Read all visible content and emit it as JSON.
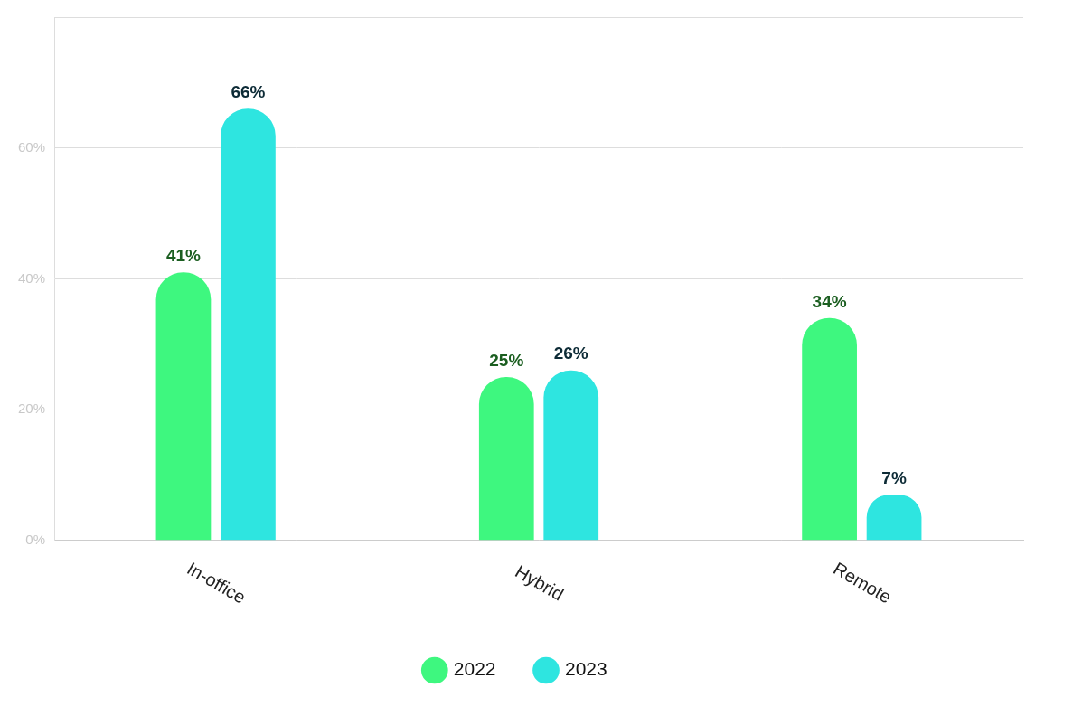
{
  "chart_data": {
    "type": "bar",
    "categories": [
      "In-office",
      "Hybrid",
      "Remote"
    ],
    "series": [
      {
        "name": "2022",
        "color": "#3ef77f",
        "values": [
          41,
          25,
          34
        ],
        "value_labels": [
          "41%",
          "25%",
          "34%"
        ]
      },
      {
        "name": "2023",
        "color": "#2ee5e0",
        "values": [
          66,
          26,
          7
        ],
        "value_labels": [
          "66%",
          "26%",
          "7%"
        ]
      }
    ],
    "ylim": [
      0,
      80
    ],
    "yticks": [
      {
        "value": 0,
        "label": "0%"
      },
      {
        "value": 20,
        "label": "20%"
      },
      {
        "value": 40,
        "label": "40%"
      },
      {
        "value": 60,
        "label": "60%"
      }
    ],
    "grid": true,
    "legend": "bottom",
    "data_labels": true
  }
}
